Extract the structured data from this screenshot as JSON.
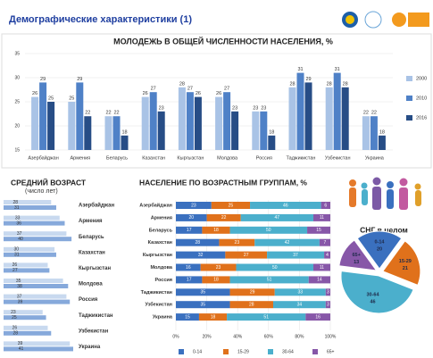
{
  "header": {
    "title": "Демографические   характеристики  (1)"
  },
  "chart_data": [
    {
      "type": "bar",
      "title": "МОЛОДЕЖЬ В ОБЩЕЙ ЧИСЛЕННОСТИ НАСЕЛЕНИЯ, %",
      "categories": [
        "Азербайджан",
        "Армения",
        "Беларусь",
        "Казахстан",
        "Кыргызстан",
        "Молдова",
        "Россия",
        "Таджикистан",
        "Узбекистан",
        "Украина"
      ],
      "series": [
        {
          "name": "2000",
          "color": "#a9c3e6",
          "values": [
            26,
            25,
            22,
            26,
            28,
            26,
            23,
            28,
            28,
            22
          ]
        },
        {
          "name": "2010",
          "color": "#4f81c7",
          "values": [
            29,
            29,
            22,
            27,
            27,
            27,
            23,
            31,
            31,
            22
          ]
        },
        {
          "name": "2016",
          "color": "#274d86",
          "values": [
            25,
            22,
            18,
            23,
            26,
            23,
            18,
            29,
            28,
            18
          ]
        }
      ],
      "ylim": [
        15,
        35
      ],
      "yticks": [
        15,
        20,
        25,
        30,
        35
      ],
      "grid": true,
      "legend": "right"
    },
    {
      "type": "hbar",
      "title": "СРЕДНИЙ ВОЗРАСТ",
      "subtitle": "(число лет)",
      "categories": [
        "Азербайджан",
        "Армения",
        "Беларусь",
        "Казахстан",
        "Кыргызстан",
        "Молдова",
        "Россия",
        "Таджикистан",
        "Узбекистан",
        "Украина"
      ],
      "series": [
        {
          "color": "#c8d9ef",
          "values": [
            28,
            33,
            37,
            30,
            26,
            35,
            37,
            23,
            26,
            39
          ]
        },
        {
          "color": "#86a9db",
          "values": [
            31,
            36,
            40,
            31,
            27,
            38,
            39,
            25,
            28,
            41
          ]
        }
      ]
    },
    {
      "type": "stackedbar",
      "title": "НАСЕЛЕНИЕ ПО ВОЗРАСТНЫМ ГРУППАМ, %",
      "categories": [
        "Азербайджан",
        "Армения",
        "Беларусь",
        "Казахстан",
        "Кыргызстан",
        "Молдова",
        "Россия",
        "Таджикистан",
        "Узбекистан",
        "Украина"
      ],
      "series": [
        {
          "name": "0-14",
          "color": "#3a70bf",
          "values": [
            23,
            20,
            17,
            28,
            32,
            16,
            17,
            35,
            35,
            15
          ]
        },
        {
          "name": "15-29",
          "color": "#e0711b",
          "values": [
            25,
            22,
            18,
            23,
            27,
            23,
            18,
            29,
            28,
            18
          ]
        },
        {
          "name": "30-64",
          "color": "#4bafcc",
          "values": [
            46,
            47,
            50,
            42,
            37,
            50,
            51,
            33,
            34,
            51
          ]
        },
        {
          "name": "65+",
          "color": "#8757a8",
          "values": [
            6,
            11,
            15,
            7,
            4,
            11,
            14,
            3,
            3,
            16
          ]
        }
      ],
      "xlim": [
        0,
        100
      ],
      "xticks": [
        {
          "value": 0,
          "label": "0%"
        },
        {
          "value": 20,
          "label": "20%"
        },
        {
          "value": 40,
          "label": "40%"
        },
        {
          "value": 60,
          "label": "60%"
        },
        {
          "value": 80,
          "label": "80%"
        },
        {
          "value": 100,
          "label": "100%"
        }
      ],
      "legend": "bottom"
    },
    {
      "type": "pie",
      "title": "СНГ в целом",
      "categories": [
        "0-14",
        "15-29",
        "30-64",
        "65+"
      ],
      "values": [
        20,
        21,
        46,
        13
      ],
      "colors": [
        "#3a70bf",
        "#e0711b",
        "#4bafcc",
        "#8757a8"
      ]
    }
  ]
}
